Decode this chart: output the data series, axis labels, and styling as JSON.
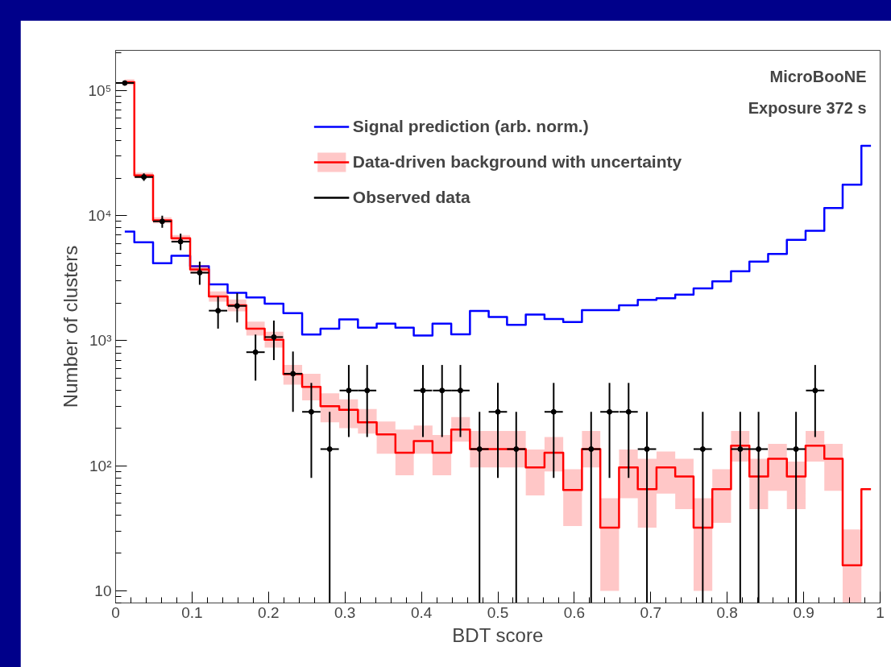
{
  "chart_data": {
    "type": "step",
    "xlabel": "BDT score",
    "ylabel": "Number of clusters",
    "annotations": [
      "MicroBooNE",
      "Exposure 372 s"
    ],
    "x": [
      0.012,
      0.037,
      0.061,
      0.085,
      0.11,
      0.134,
      0.159,
      0.183,
      0.207,
      0.232,
      0.256,
      0.28,
      0.305,
      0.329,
      0.354,
      0.378,
      0.402,
      0.427,
      0.451,
      0.476,
      0.5,
      0.524,
      0.549,
      0.573,
      0.598,
      0.622,
      0.646,
      0.671,
      0.695,
      0.72,
      0.744,
      0.768,
      0.793,
      0.817,
      0.841,
      0.866,
      0.89,
      0.915,
      0.939,
      0.963,
      0.988
    ],
    "series": [
      {
        "name": "Signal prediction (arb. norm.)",
        "color": "#0000ff",
        "values": [
          7460,
          6120,
          4170,
          4790,
          3950,
          2820,
          2420,
          2220,
          1980,
          1660,
          1120,
          1250,
          1480,
          1270,
          1370,
          1270,
          1100,
          1370,
          1125,
          1730,
          1550,
          1340,
          1620,
          1490,
          1410,
          1760,
          1760,
          1920,
          2120,
          2190,
          2340,
          2620,
          2990,
          3600,
          4300,
          4940,
          6400,
          7570,
          11500,
          17700,
          36200
        ]
      },
      {
        "name": "Data-driven background with uncertainty",
        "color": "#ff0000",
        "values": [
          117000,
          21000,
          9200,
          6600,
          3720,
          2260,
          1920,
          1250,
          1020,
          540,
          427,
          300,
          280,
          223,
          178,
          127,
          158,
          127,
          195,
          136,
          136,
          136,
          97,
          127,
          64,
          136,
          32,
          97,
          65,
          97,
          82,
          32,
          65,
          145,
          82,
          114,
          82,
          145,
          114,
          16,
          65
        ],
        "lower": [
          111000,
          19900,
          8700,
          6200,
          3450,
          2050,
          1720,
          1100,
          880,
          445,
          333,
          223,
          200,
          181,
          125,
          84,
          125,
          84,
          156,
          97,
          97,
          97,
          58,
          90,
          33,
          97,
          10,
          55,
          32,
          60,
          45,
          10,
          35,
          108,
          45,
          63,
          45,
          108,
          63,
          8,
          65
        ],
        "upper": [
          123000,
          22100,
          9700,
          7000,
          4000,
          2480,
          2140,
          1420,
          1180,
          640,
          545,
          380,
          340,
          284,
          226,
          195,
          210,
          176,
          245,
          190,
          190,
          190,
          135,
          170,
          94,
          190,
          55,
          135,
          114,
          130,
          114,
          55,
          94,
          190,
          114,
          150,
          108,
          190,
          150,
          31,
          65
        ]
      },
      {
        "name": "Observed data",
        "type": "scatter",
        "marker": "circle",
        "color": "#000000",
        "values": [
          115000,
          20400,
          9000,
          6200,
          3500,
          1740,
          1900,
          810,
          1070,
          545,
          270,
          136,
          400,
          400,
          null,
          null,
          400,
          400,
          400,
          136,
          270,
          136,
          null,
          270,
          null,
          136,
          270,
          270,
          136,
          null,
          null,
          136,
          null,
          136,
          136,
          null,
          136,
          400,
          null,
          null,
          null
        ],
        "errors": [
          [
            110000,
            120000
          ],
          [
            19000,
            21800
          ],
          [
            8000,
            10000
          ],
          [
            5300,
            7200
          ],
          [
            2800,
            4300
          ],
          [
            1250,
            2250
          ],
          [
            1400,
            2400
          ],
          [
            480,
            1120
          ],
          [
            700,
            1450
          ],
          [
            270,
            820
          ],
          [
            80,
            460
          ],
          [
            8,
            270
          ],
          [
            170,
            640
          ],
          [
            170,
            640
          ],
          null,
          null,
          [
            170,
            640
          ],
          [
            170,
            640
          ],
          [
            170,
            640
          ],
          [
            8,
            270
          ],
          [
            80,
            460
          ],
          [
            8,
            270
          ],
          null,
          [
            80,
            460
          ],
          null,
          [
            8,
            270
          ],
          [
            80,
            460
          ],
          [
            80,
            460
          ],
          [
            8,
            270
          ],
          null,
          null,
          [
            8,
            270
          ],
          null,
          [
            8,
            270
          ],
          [
            8,
            270
          ],
          null,
          [
            8,
            270
          ],
          [
            170,
            640
          ],
          null,
          null,
          null
        ],
        "xerrors": [
          0.012,
          0.012,
          0.012,
          0.012,
          0.012,
          0.012,
          0.012,
          0.012,
          0.012,
          0.012,
          0.012,
          0.012,
          0.012,
          0.012,
          null,
          null,
          0.012,
          0.012,
          0.012,
          0.012,
          0.012,
          0.012,
          null,
          0.012,
          null,
          0.012,
          0.012,
          0.012,
          0.012,
          null,
          null,
          0.012,
          null,
          0.012,
          0.012,
          null,
          0.012,
          0.012,
          null,
          null,
          null
        ]
      }
    ],
    "xlim": [
      0,
      1
    ],
    "xticks": [
      0,
      0.1,
      0.2,
      0.3,
      0.4,
      0.5,
      0.6,
      0.7,
      0.8,
      0.9,
      1
    ],
    "log": true,
    "ylim": [
      8,
      210000
    ],
    "yticks": [
      10,
      {
        "value": 100,
        "label": "10²"
      },
      {
        "value": 1000,
        "label": "10³"
      },
      {
        "value": 10000,
        "label": "10⁴"
      },
      {
        "value": 100000,
        "label": "10⁵"
      }
    ],
    "grid": false,
    "legend": "top"
  }
}
